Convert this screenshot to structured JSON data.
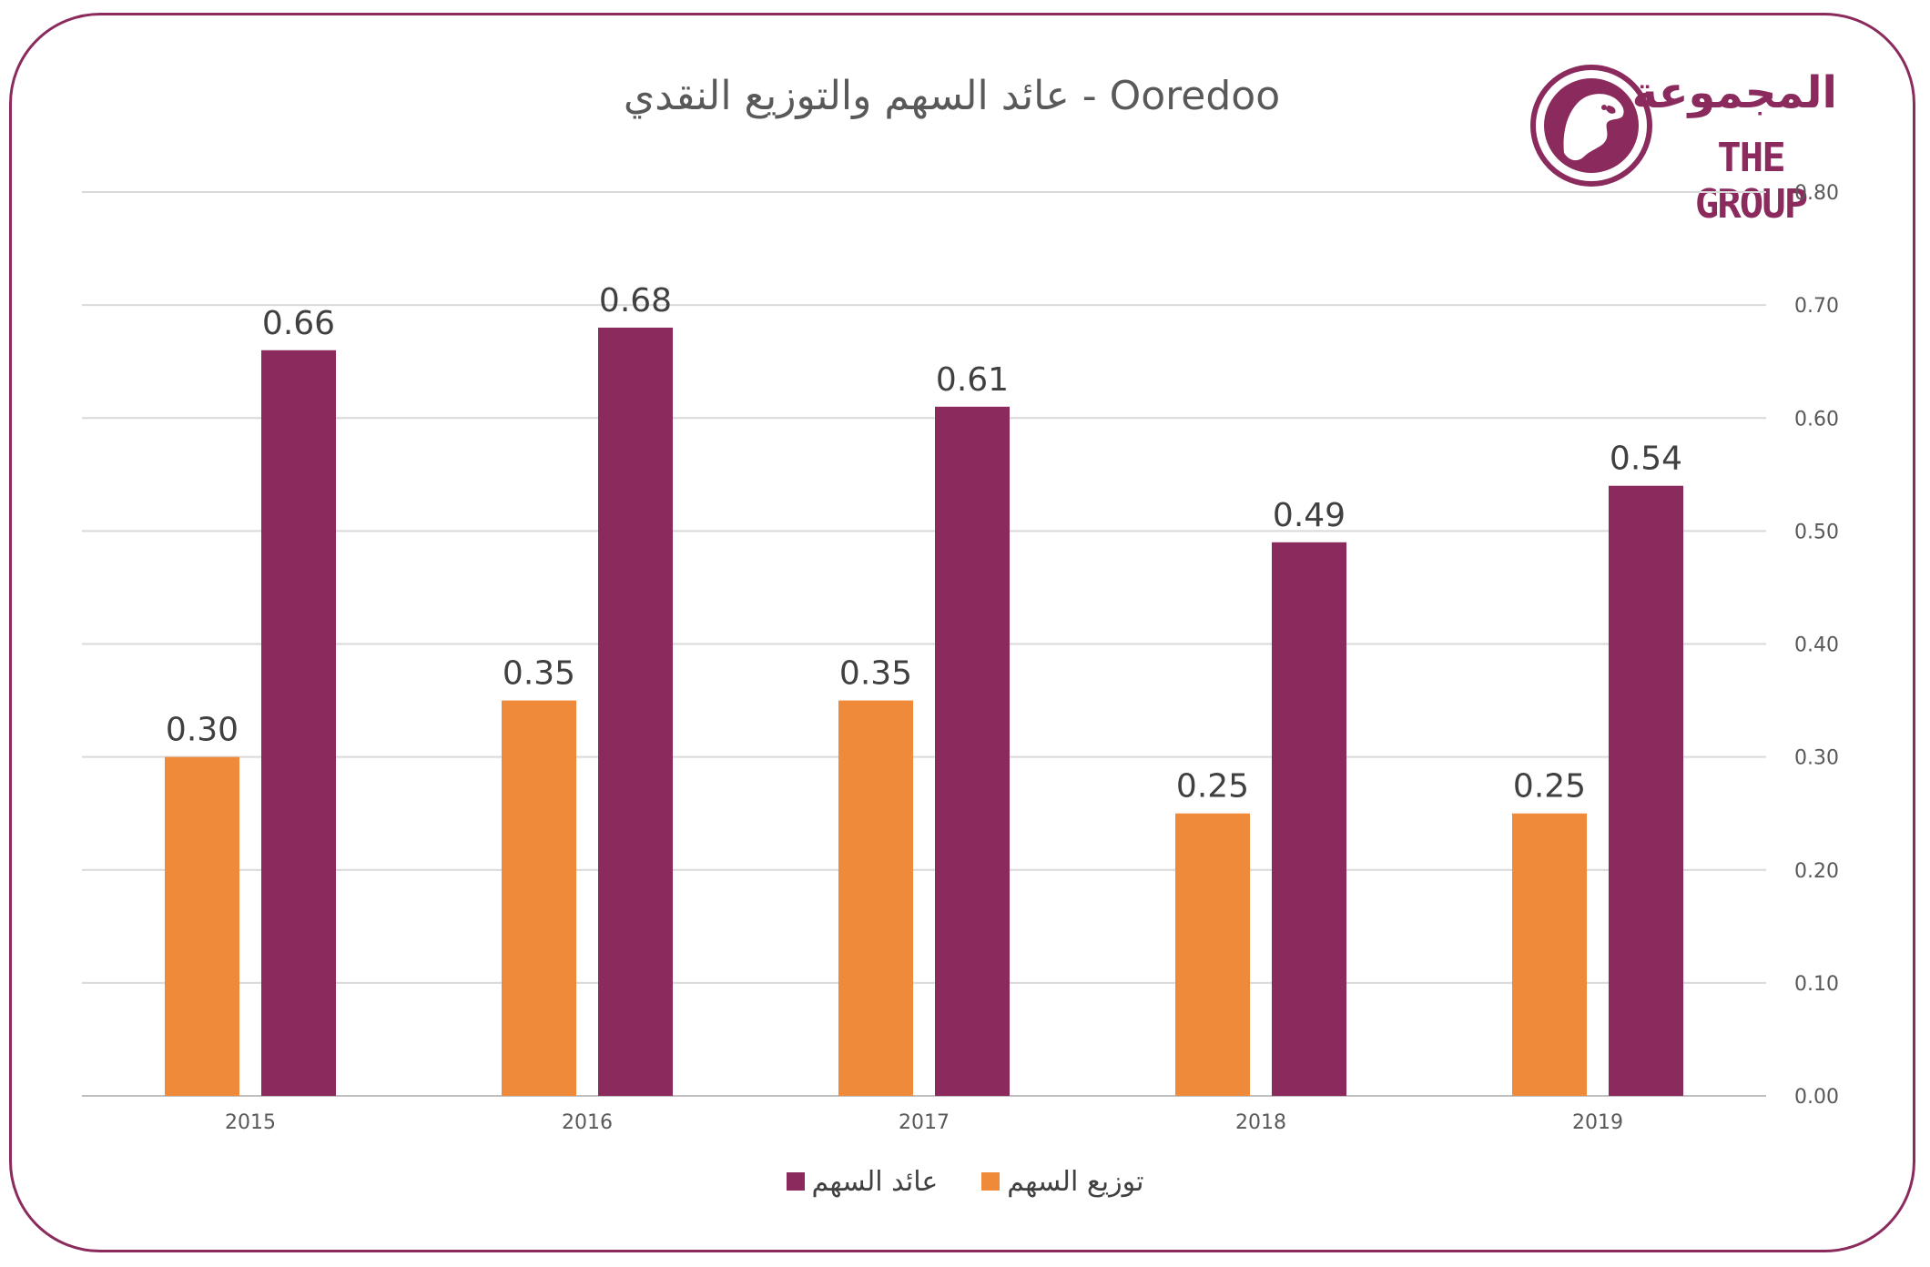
{
  "chart_data": {
    "type": "bar",
    "title": "عائد السهم والتوزيع النقدي - Ooredoo",
    "categories": [
      "2015",
      "2016",
      "2017",
      "2018",
      "2019"
    ],
    "series": [
      {
        "name": "توزيع السهم",
        "values": [
          0.3,
          0.35,
          0.35,
          0.25,
          0.25
        ],
        "labels": [
          "0.30",
          "0.35",
          "0.35",
          "0.25",
          "0.25"
        ],
        "color": "#ef8a3a"
      },
      {
        "name": "عائد السهم",
        "values": [
          0.66,
          0.68,
          0.61,
          0.49,
          0.54
        ],
        "labels": [
          "0.66",
          "0.68",
          "0.61",
          "0.49",
          "0.54"
        ],
        "color": "#8b2a5c"
      }
    ],
    "ylim": [
      0,
      0.8
    ],
    "yticks": [
      "0.00",
      "0.10",
      "0.20",
      "0.30",
      "0.40",
      "0.50",
      "0.60",
      "0.70",
      "0.80"
    ],
    "y_axis_position": "right",
    "grid": true,
    "legend": "bottom",
    "xlabel": "",
    "ylabel": ""
  },
  "logo": {
    "arabic": "المجموعة",
    "english": "THE GROUP",
    "color": "#8b2a5c"
  }
}
